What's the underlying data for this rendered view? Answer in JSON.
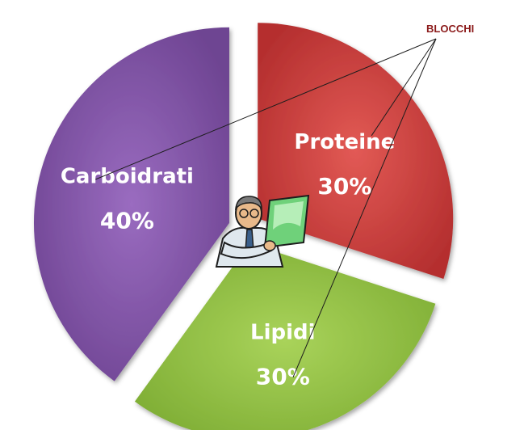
{
  "chart_data": {
    "type": "pie",
    "exploded": true,
    "categories": [
      "Proteine",
      "Lipidi",
      "Carboidrati"
    ],
    "values": [
      30,
      30,
      40
    ],
    "value_labels": [
      "30%",
      "30%",
      "40%"
    ],
    "colors": [
      "#d64040",
      "#94c244",
      "#8a5cae"
    ],
    "annotation": "BLOCCHI",
    "legend": "none"
  },
  "illustration": "doctor-reading-document-icon"
}
